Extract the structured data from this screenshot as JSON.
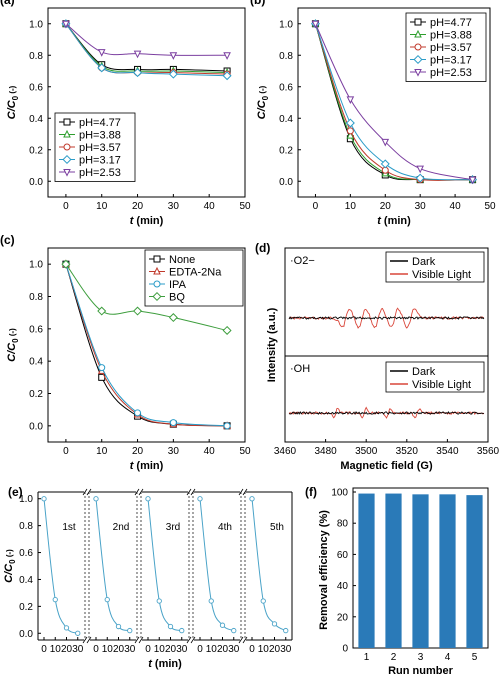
{
  "figure": {
    "panels": [
      "(a)",
      "(b)",
      "(c)",
      "(d)",
      "(e)",
      "(f)"
    ]
  },
  "chart_data": [
    {
      "id": "a",
      "type": "line",
      "xlabel": "t (min)",
      "ylabel": "C/C0 (-)",
      "xlim": [
        -5,
        50
      ],
      "ylim": [
        -0.1,
        1.1
      ],
      "x_ticks": [
        0,
        10,
        20,
        30,
        40,
        50
      ],
      "y_ticks": [
        0.0,
        0.2,
        0.4,
        0.6,
        0.8,
        1.0
      ],
      "legend_position": "bottom-left",
      "x": [
        0,
        10,
        20,
        30,
        45
      ],
      "series": [
        {
          "name": "pH=4.77",
          "color": "#000000",
          "marker": "square",
          "values": [
            1.0,
            0.74,
            0.71,
            0.71,
            0.7
          ]
        },
        {
          "name": "pH=3.88",
          "color": "#2e9e2e",
          "marker": "triangle-up",
          "values": [
            1.0,
            0.73,
            0.7,
            0.7,
            0.69
          ]
        },
        {
          "name": "pH=3.57",
          "color": "#c0392b",
          "marker": "circle",
          "values": [
            1.0,
            0.72,
            0.69,
            0.69,
            0.68
          ]
        },
        {
          "name": "pH=3.17",
          "color": "#2b9cc8",
          "marker": "diamond",
          "values": [
            1.0,
            0.72,
            0.69,
            0.68,
            0.67
          ]
        },
        {
          "name": "pH=2.53",
          "color": "#7b3fa0",
          "marker": "triangle-down",
          "values": [
            1.0,
            0.82,
            0.81,
            0.8,
            0.8
          ]
        }
      ]
    },
    {
      "id": "b",
      "type": "line",
      "xlabel": "t (min)",
      "ylabel": "C/C0 (-)",
      "xlim": [
        -5,
        50
      ],
      "ylim": [
        -0.1,
        1.1
      ],
      "x_ticks": [
        0,
        10,
        20,
        30,
        40,
        50
      ],
      "y_ticks": [
        0.0,
        0.2,
        0.4,
        0.6,
        0.8,
        1.0
      ],
      "legend_position": "top-right",
      "x": [
        0,
        10,
        20,
        30,
        45
      ],
      "series": [
        {
          "name": "pH=4.77",
          "color": "#000000",
          "marker": "square",
          "values": [
            1.0,
            0.27,
            0.04,
            0.01,
            0.01
          ]
        },
        {
          "name": "pH=3.88",
          "color": "#2e9e2e",
          "marker": "triangle-up",
          "values": [
            1.0,
            0.29,
            0.05,
            0.01,
            0.01
          ]
        },
        {
          "name": "pH=3.57",
          "color": "#c0392b",
          "marker": "circle",
          "values": [
            1.0,
            0.32,
            0.07,
            0.01,
            0.01
          ]
        },
        {
          "name": "pH=3.17",
          "color": "#2b9cc8",
          "marker": "diamond",
          "values": [
            1.0,
            0.37,
            0.11,
            0.02,
            0.01
          ]
        },
        {
          "name": "pH=2.53",
          "color": "#7b3fa0",
          "marker": "triangle-down",
          "values": [
            1.0,
            0.52,
            0.25,
            0.08,
            0.01
          ]
        }
      ]
    },
    {
      "id": "c",
      "type": "line",
      "xlabel": "t (min)",
      "ylabel": "C/C0 (-)",
      "xlim": [
        -5,
        50
      ],
      "ylim": [
        -0.1,
        1.1
      ],
      "x_ticks": [
        0,
        10,
        20,
        30,
        40,
        50
      ],
      "y_ticks": [
        0.0,
        0.2,
        0.4,
        0.6,
        0.8,
        1.0
      ],
      "legend_position": "top-right",
      "x": [
        0,
        10,
        20,
        30,
        45
      ],
      "series": [
        {
          "name": "None",
          "color": "#000000",
          "marker": "square",
          "values": [
            1.0,
            0.3,
            0.06,
            0.01,
            0.0
          ]
        },
        {
          "name": "EDTA-2Na",
          "color": "#c0392b",
          "marker": "triangle-up",
          "values": [
            1.0,
            0.34,
            0.07,
            0.01,
            0.0
          ]
        },
        {
          "name": "IPA",
          "color": "#2b9cc8",
          "marker": "circle",
          "values": [
            1.0,
            0.36,
            0.08,
            0.02,
            0.0
          ]
        },
        {
          "name": "BQ",
          "color": "#3e9e3e",
          "marker": "diamond",
          "values": [
            1.0,
            0.71,
            0.71,
            0.67,
            0.59
          ]
        }
      ]
    },
    {
      "id": "d",
      "type": "line",
      "xlabel": "Magnetic field (G)",
      "ylabel": "Intensity (a.u.)",
      "xlim": [
        3460,
        3560
      ],
      "x_ticks": [
        3460,
        3480,
        3500,
        3520,
        3540,
        3560
      ],
      "subpanels": [
        {
          "label": "·O2−",
          "legend_position": "top-right",
          "series": [
            {
              "name": "Dark",
              "color": "#000000",
              "peaks": []
            },
            {
              "name": "Visible Light",
              "color": "#d9463a",
              "peaks": [
                3490,
                3498,
                3506,
                3514,
                3522
              ]
            }
          ]
        },
        {
          "label": "·OH",
          "legend_position": "top-right",
          "series": [
            {
              "name": "Dark",
              "color": "#000000",
              "peaks": []
            },
            {
              "name": "Visible Light",
              "color": "#d9463a",
              "peaks": [
                3485,
                3499,
                3511,
                3525
              ]
            }
          ]
        }
      ]
    },
    {
      "id": "e",
      "type": "line",
      "xlabel": "t (min)",
      "ylabel": "C/C0 (-)",
      "ylim": [
        -0.05,
        1.05
      ],
      "y_ticks": [
        0.0,
        0.2,
        0.4,
        0.6,
        0.8,
        1.0
      ],
      "x_ticks": [
        0,
        10,
        20,
        30
      ],
      "x_tick_labels": [
        "0",
        "10",
        "20",
        "30"
      ],
      "x": [
        0,
        10,
        20,
        30
      ],
      "color": "#4aa3c8",
      "runs": [
        {
          "label": "1st",
          "values": [
            1.0,
            0.25,
            0.04,
            0.0
          ]
        },
        {
          "label": "2nd",
          "values": [
            1.0,
            0.25,
            0.05,
            0.02
          ]
        },
        {
          "label": "3rd",
          "values": [
            1.0,
            0.24,
            0.05,
            0.02
          ]
        },
        {
          "label": "4th",
          "values": [
            1.0,
            0.24,
            0.06,
            0.02
          ]
        },
        {
          "label": "5th",
          "values": [
            1.0,
            0.24,
            0.07,
            0.02
          ]
        }
      ]
    },
    {
      "id": "f",
      "type": "bar",
      "xlabel": "Run number",
      "ylabel": "Removal efficiency (%)",
      "ylim": [
        0,
        100
      ],
      "y_ticks": [
        0,
        20,
        40,
        60,
        80,
        100
      ],
      "categories": [
        "1",
        "2",
        "3",
        "4",
        "5"
      ],
      "values": [
        99,
        99,
        98.5,
        98.5,
        98
      ],
      "color": "#2a7ab8"
    }
  ]
}
